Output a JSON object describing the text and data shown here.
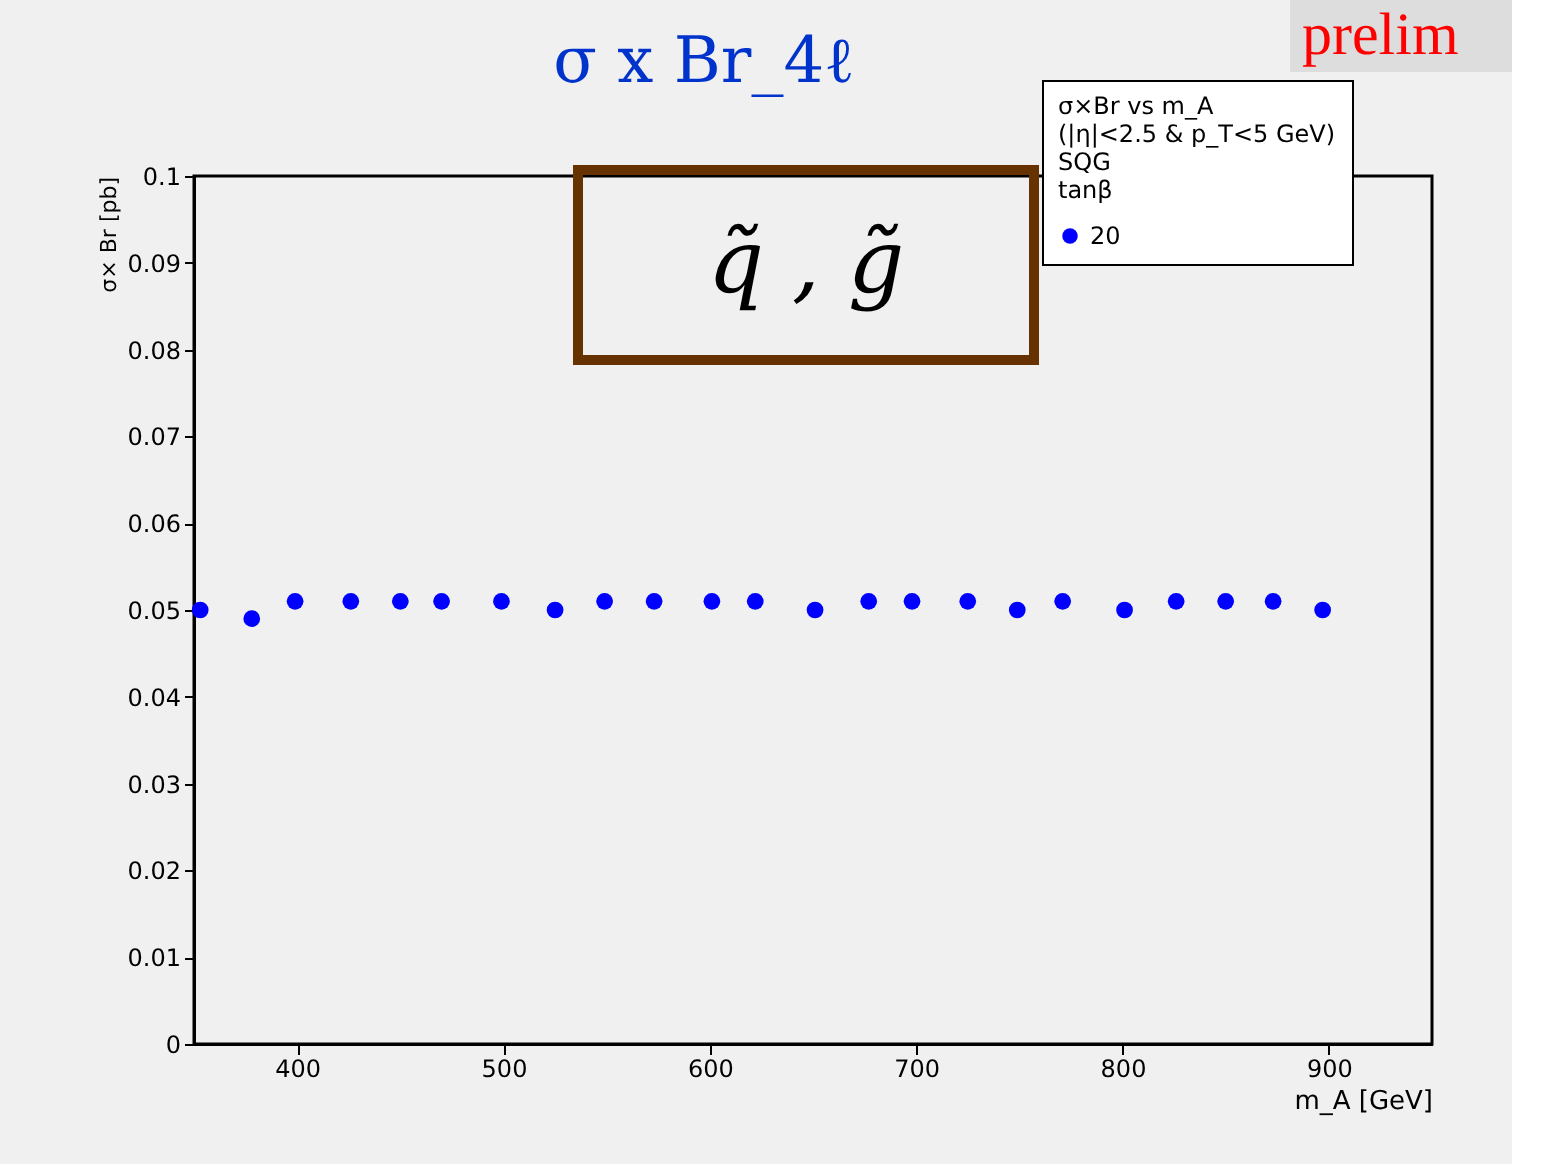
{
  "chart_data": {
    "type": "scatter",
    "title": "σ x Br_4ℓ",
    "xlabel": "m_A [GeV]",
    "ylabel": "σ× Br [pb]",
    "legend_title": "σ×Br vs m_A\n(|η|<2.5 & p_T<5 GeV)\nSQG\ntanβ",
    "annotations": [
      "q̃ , g̃",
      "prelim"
    ],
    "x": [
      353,
      378,
      399,
      426,
      450,
      470,
      499,
      525,
      549,
      573,
      601,
      622,
      651,
      677,
      698,
      725,
      749,
      771,
      801,
      826,
      850,
      873,
      897
    ],
    "series": [
      {
        "name": "20",
        "color": "#0000ff",
        "values": [
          0.05,
          0.049,
          0.051,
          0.051,
          0.051,
          0.051,
          0.051,
          0.05,
          0.051,
          0.051,
          0.051,
          0.051,
          0.05,
          0.051,
          0.051,
          0.051,
          0.05,
          0.051,
          0.05,
          0.051,
          0.051,
          0.051,
          0.05
        ]
      }
    ],
    "xlim": [
      350,
      950
    ],
    "xticks": [
      400,
      500,
      600,
      700,
      800,
      900
    ],
    "ylim": [
      0,
      0.1
    ],
    "yticks": [
      0,
      0.01,
      0.02,
      0.03,
      0.04,
      0.05,
      0.06,
      0.07,
      0.08,
      0.09,
      0.1
    ],
    "marker": "circle",
    "grid": false,
    "legend": "top right"
  }
}
